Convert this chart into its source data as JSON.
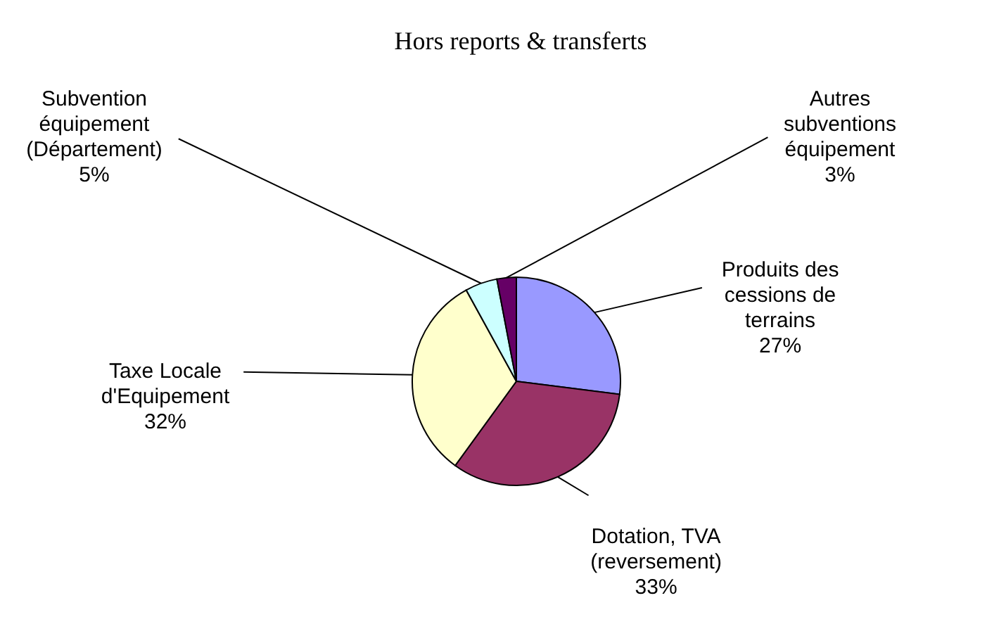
{
  "chart_data": {
    "type": "pie",
    "title": "Hors reports & transferts",
    "categories": [
      "Produits des cessions de terrains",
      "Dotation, TVA (reversement)",
      "Taxe Locale d'Equipement",
      "Subvention équipement (Département)",
      "Autres subventions équipement"
    ],
    "values": [
      27,
      33,
      32,
      5,
      3
    ],
    "value_labels": [
      "27%",
      "33%",
      "32%",
      "5%",
      "3%"
    ],
    "colors": [
      "#9999ff",
      "#993366",
      "#ffffcc",
      "#ccffff",
      "#660066"
    ]
  }
}
